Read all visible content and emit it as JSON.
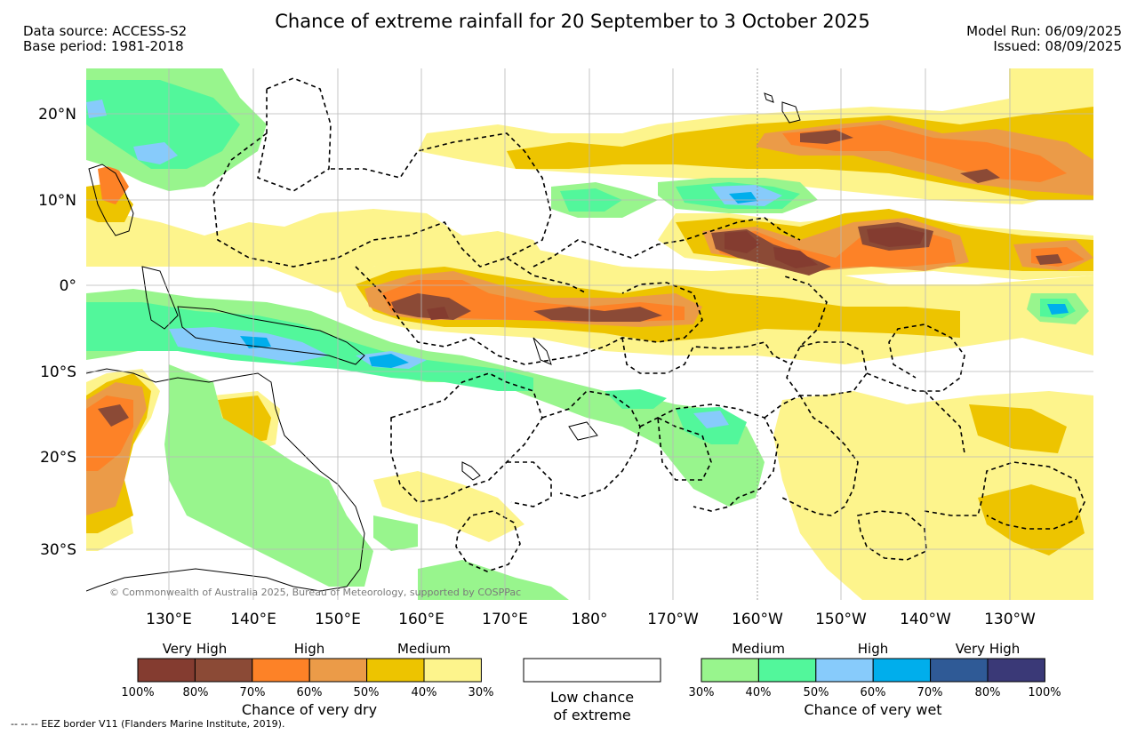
{
  "header": {
    "title": "Chance of extreme rainfall for 20 September to 3 October 2025",
    "data_source": "Data source: ACCESS-S2",
    "base_period": "Base period: 1981-2018",
    "model_run": "Model Run: 06/09/2025",
    "issued": "Issued: 08/09/2025"
  },
  "map": {
    "lon_labels": [
      "130°E",
      "140°E",
      "150°E",
      "160°E",
      "170°E",
      "180°",
      "170°W",
      "160°W",
      "150°W",
      "140°W",
      "130°W"
    ],
    "lat_labels": [
      "20°N",
      "10°N",
      "0°",
      "10°S",
      "20°S",
      "30°S"
    ],
    "copyright": "© Commonwealth of Australia 2025, Bureau of Meteorology, supported by COSPPac"
  },
  "legend": {
    "dry": {
      "headers": [
        "Very High",
        "High",
        "Medium"
      ],
      "colors": [
        "#843c30",
        "#8b4a36",
        "#fd8227",
        "#eb9b48",
        "#edc400",
        "#fdf48c"
      ],
      "ticks": [
        "100%",
        "80%",
        "70%",
        "60%",
        "50%",
        "40%",
        "30%"
      ],
      "title": "Chance of very dry"
    },
    "low": {
      "color": "#ffffff",
      "title_line1": "Low chance",
      "title_line2": "of extreme"
    },
    "wet": {
      "headers": [
        "Medium",
        "High",
        "Very High"
      ],
      "colors": [
        "#98f58d",
        "#52f79b",
        "#87cbfb",
        "#00aeec",
        "#2f5a96",
        "#3a3977"
      ],
      "ticks": [
        "30%",
        "40%",
        "50%",
        "60%",
        "70%",
        "80%",
        "100%"
      ],
      "title": "Chance of very wet"
    }
  },
  "footer": {
    "eez_note": "--  --  -- EEZ border V11 (Flanders Marine Institute, 2019)."
  }
}
